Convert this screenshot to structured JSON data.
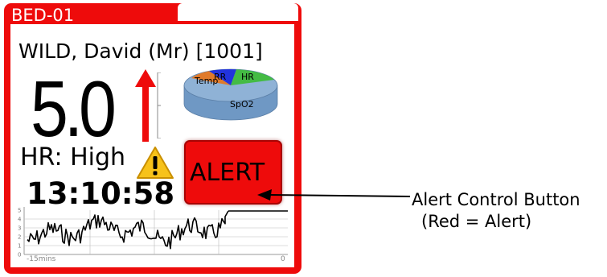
{
  "card": {
    "bed_id": "BED-01",
    "patient_name": "WILD, David (Mr) [1001]",
    "score": "5.0",
    "trend_icon": "arrow-up-icon",
    "parameter_status": "HR: High",
    "warning_icon": "warning-triangle-icon",
    "time": "13:10:58",
    "alert_button_label": "ALERT",
    "pie_labels": {
      "rr": "RR",
      "hr": "HR",
      "temp": "Temp",
      "spo2": "SpO2"
    },
    "trend_axis": {
      "start": "-15mins",
      "end": "0",
      "y_ticks": [
        "5",
        "4",
        "3",
        "2",
        "1",
        "0"
      ]
    }
  },
  "annotation": {
    "line1": "Alert Control Button",
    "line2": "(Red = Alert)"
  },
  "colors": {
    "alert_red": "#ee0b0b",
    "pie_rr": "#2233dd",
    "pie_hr": "#44bb44",
    "pie_temp": "#e07a2a",
    "pie_spo2": "#8fb2d6",
    "warning_yellow": "#f7c21a"
  }
}
